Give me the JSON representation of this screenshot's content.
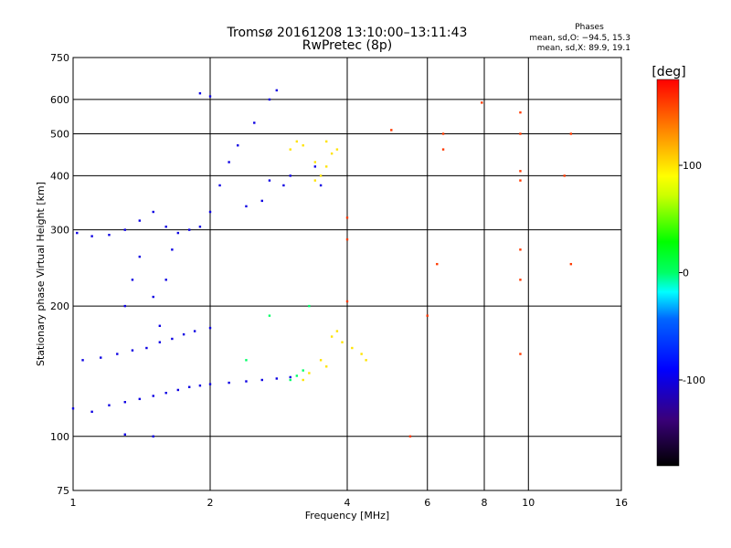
{
  "chart_data": {
    "type": "scatter",
    "title": "Tromsø 20161208 13:10:00–13:11:43",
    "subtitle": "RwPretec (8p)",
    "xlabel": "Frequency [MHz]",
    "ylabel": "Stationary phase Virtual Height [km]",
    "x_scale": "log",
    "y_scale": "log",
    "xlim": [
      1,
      16
    ],
    "ylim": [
      75,
      750
    ],
    "x_ticks": [
      1,
      2,
      4,
      6,
      8,
      10,
      16
    ],
    "y_ticks": [
      75,
      100,
      200,
      300,
      400,
      500,
      600,
      750
    ],
    "grid": true,
    "stats": {
      "header": "Phases",
      "line1": "mean, sd,O: −94.5, 15.3",
      "line2": "mean, sd,X:  89.9, 19.1"
    },
    "colorbar": {
      "label": "[deg]",
      "ticks": [
        100,
        0,
        -100
      ],
      "range": [
        -180,
        180
      ]
    },
    "series": [
      {
        "color_phase": -100,
        "points": [
          [
            1.0,
            116
          ],
          [
            1.1,
            114
          ],
          [
            1.2,
            118
          ],
          [
            1.3,
            120
          ],
          [
            1.4,
            122
          ],
          [
            1.5,
            124
          ],
          [
            1.6,
            126
          ],
          [
            1.7,
            128
          ],
          [
            1.8,
            130
          ],
          [
            1.9,
            131
          ],
          [
            2.0,
            132
          ],
          [
            2.2,
            133
          ],
          [
            2.4,
            134
          ],
          [
            2.6,
            135
          ],
          [
            2.8,
            136
          ],
          [
            3.0,
            137
          ],
          [
            1.05,
            150
          ],
          [
            1.15,
            152
          ],
          [
            1.25,
            155
          ],
          [
            1.35,
            158
          ],
          [
            1.45,
            160
          ],
          [
            1.55,
            165
          ],
          [
            1.65,
            168
          ],
          [
            1.75,
            172
          ],
          [
            1.85,
            175
          ],
          [
            2.0,
            178
          ],
          [
            1.02,
            295
          ],
          [
            1.1,
            290
          ],
          [
            1.2,
            292
          ],
          [
            1.3,
            300
          ],
          [
            1.4,
            315
          ],
          [
            1.5,
            330
          ],
          [
            1.6,
            305
          ],
          [
            1.7,
            295
          ],
          [
            1.8,
            300
          ],
          [
            1.9,
            305
          ],
          [
            2.0,
            330
          ],
          [
            2.1,
            380
          ],
          [
            2.2,
            430
          ],
          [
            2.3,
            470
          ],
          [
            2.5,
            530
          ],
          [
            2.7,
            600
          ],
          [
            2.8,
            630
          ],
          [
            1.9,
            620
          ],
          [
            2.0,
            610
          ],
          [
            1.3,
            200
          ],
          [
            1.35,
            230
          ],
          [
            1.4,
            260
          ],
          [
            1.5,
            210
          ],
          [
            1.55,
            180
          ],
          [
            1.6,
            230
          ],
          [
            1.65,
            270
          ],
          [
            1.3,
            101
          ],
          [
            1.5,
            100
          ],
          [
            2.7,
            390
          ],
          [
            2.9,
            380
          ],
          [
            3.0,
            400
          ],
          [
            2.6,
            350
          ],
          [
            2.4,
            340
          ],
          [
            3.4,
            420
          ],
          [
            3.5,
            380
          ]
        ]
      },
      {
        "color_phase": 0,
        "points": [
          [
            3.0,
            135
          ],
          [
            3.1,
            138
          ],
          [
            3.2,
            142
          ],
          [
            2.4,
            150
          ],
          [
            2.7,
            190
          ],
          [
            3.3,
            200
          ]
        ]
      },
      {
        "color_phase": 100,
        "points": [
          [
            3.0,
            460
          ],
          [
            3.1,
            480
          ],
          [
            3.2,
            470
          ],
          [
            3.4,
            430
          ],
          [
            3.6,
            420
          ],
          [
            3.7,
            450
          ],
          [
            3.8,
            460
          ],
          [
            3.6,
            480
          ],
          [
            3.5,
            400
          ],
          [
            3.4,
            390
          ],
          [
            3.7,
            170
          ],
          [
            3.9,
            165
          ],
          [
            4.1,
            160
          ],
          [
            4.3,
            155
          ],
          [
            3.5,
            150
          ],
          [
            3.6,
            145
          ],
          [
            3.3,
            140
          ],
          [
            3.2,
            135
          ],
          [
            3.8,
            175
          ],
          [
            4.4,
            150
          ]
        ]
      },
      {
        "color_phase": 160,
        "points": [
          [
            4.0,
            205
          ],
          [
            4.0,
            285
          ],
          [
            4.0,
            320
          ],
          [
            5.0,
            510
          ],
          [
            6.3,
            250
          ],
          [
            6.5,
            460
          ],
          [
            6.5,
            500
          ],
          [
            7.9,
            590
          ],
          [
            9.6,
            560
          ],
          [
            9.6,
            500
          ],
          [
            9.6,
            410
          ],
          [
            9.6,
            390
          ],
          [
            9.6,
            270
          ],
          [
            9.6,
            230
          ],
          [
            9.6,
            155
          ],
          [
            12.4,
            500
          ],
          [
            12.4,
            250
          ],
          [
            12.0,
            400
          ],
          [
            6.0,
            190
          ],
          [
            5.5,
            100
          ]
        ]
      }
    ]
  }
}
